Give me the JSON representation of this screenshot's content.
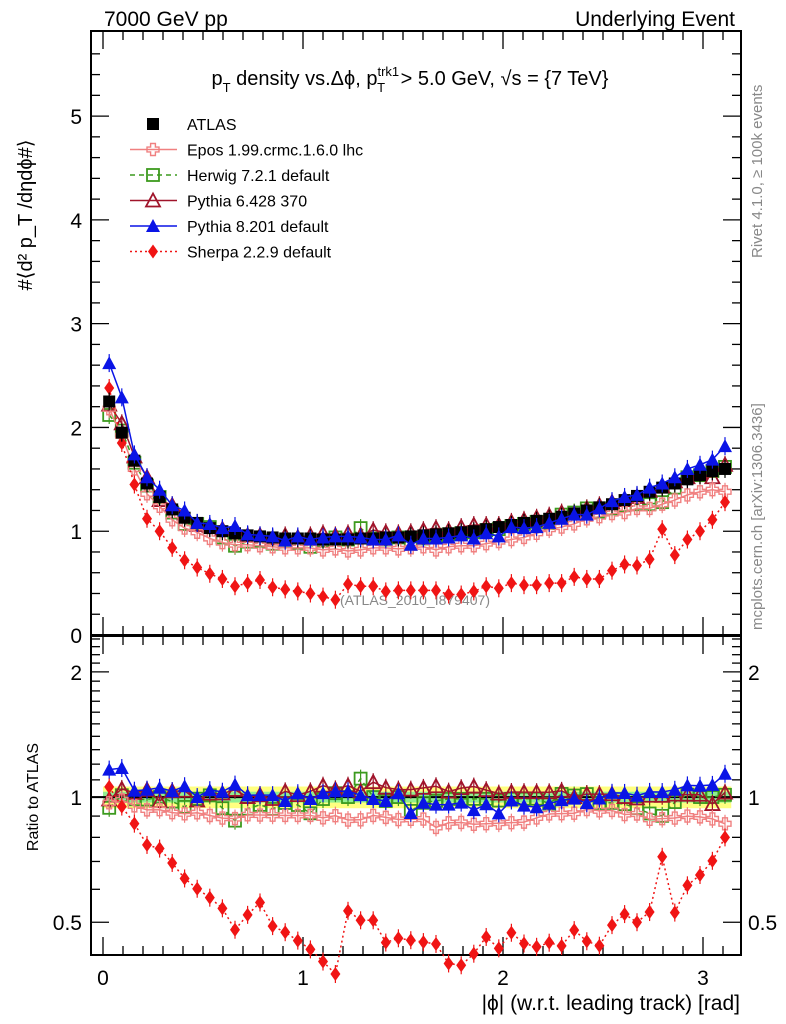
{
  "header": {
    "left": "7000 GeV pp",
    "right": "Underlying Event"
  },
  "side_text": {
    "rivet": "Rivet 4.1.0, ≥ 100k events",
    "mcplots": "mcplots.cern.ch [arXiv:1306.3436]"
  },
  "chart_data": [
    {
      "type": "scatter",
      "panel": "main",
      "title_parts": {
        "p": "p",
        "t_sub": "T",
        "mid": " density vs.Δϕ, p",
        "trk_sup": "trk1",
        "t_sub2": "T",
        "tail": " > 5.0 GeV, √s = {7 TeV}"
      },
      "title": "p_T density vs.Δϕ, p_T^trk1 > 5.0 GeV, √s = {7 TeV}",
      "ylabel": "#⟨d² p_T /dηdϕ#⟩",
      "ylim": [
        0,
        5.82
      ],
      "xlim": [
        -0.06,
        3.2
      ],
      "yticks": [
        "0",
        "1",
        "2",
        "3",
        "4",
        "5"
      ],
      "annotation": "(ATLAS_2010_I879407)",
      "legend_position": "top-left",
      "legend": [
        {
          "name": "ATLAS",
          "color": "#000000",
          "marker": "square-filled",
          "line": "none"
        },
        {
          "name": "Epos 1.99.crmc.1.6.0 lhc",
          "color": "#f08080",
          "marker": "cross-open",
          "line": "solid"
        },
        {
          "name": "Herwig 7.2.1 default",
          "color": "#3c9a1e",
          "marker": "square-open",
          "line": "dashed"
        },
        {
          "name": "Pythia 6.428 370",
          "color": "#a0142a",
          "marker": "triangle-open",
          "line": "solid"
        },
        {
          "name": "Pythia 8.201 default",
          "color": "#0a14e6",
          "marker": "triangle-filled",
          "line": "solid"
        },
        {
          "name": "Sherpa 2.2.9 default",
          "color": "#f01414",
          "marker": "diamond-filled",
          "line": "dotted"
        }
      ],
      "x": [
        0.031,
        0.094,
        0.157,
        0.22,
        0.283,
        0.346,
        0.408,
        0.471,
        0.534,
        0.597,
        0.66,
        0.723,
        0.785,
        0.848,
        0.911,
        0.974,
        1.037,
        1.1,
        1.162,
        1.225,
        1.288,
        1.351,
        1.414,
        1.477,
        1.539,
        1.602,
        1.665,
        1.728,
        1.791,
        1.854,
        1.916,
        1.979,
        2.042,
        2.105,
        2.168,
        2.231,
        2.293,
        2.356,
        2.419,
        2.482,
        2.545,
        2.608,
        2.67,
        2.733,
        2.796,
        2.859,
        2.922,
        2.985,
        3.047,
        3.11
      ],
      "series": [
        {
          "name": "ATLAS",
          "values": [
            2.25,
            1.95,
            1.68,
            1.46,
            1.33,
            1.21,
            1.13,
            1.08,
            1.03,
            1.0,
            0.98,
            0.96,
            0.95,
            0.94,
            0.93,
            0.93,
            0.93,
            0.92,
            0.92,
            0.92,
            0.93,
            0.93,
            0.94,
            0.94,
            0.95,
            0.96,
            0.97,
            0.98,
            0.99,
            1.0,
            1.02,
            1.04,
            1.06,
            1.08,
            1.1,
            1.12,
            1.14,
            1.17,
            1.2,
            1.23,
            1.26,
            1.3,
            1.34,
            1.38,
            1.42,
            1.46,
            1.5,
            1.54,
            1.58,
            1.6
          ]
        },
        {
          "name": "Epos 1.99.crmc.1.6.0 lhc",
          "values": [
            2.18,
            1.92,
            1.6,
            1.36,
            1.24,
            1.11,
            1.03,
            0.99,
            0.93,
            0.89,
            0.87,
            0.87,
            0.86,
            0.85,
            0.84,
            0.84,
            0.84,
            0.82,
            0.83,
            0.81,
            0.82,
            0.84,
            0.84,
            0.83,
            0.84,
            0.85,
            0.82,
            0.85,
            0.86,
            0.86,
            0.88,
            0.9,
            0.92,
            0.94,
            0.98,
            1.02,
            1.04,
            1.07,
            1.12,
            1.14,
            1.17,
            1.18,
            1.22,
            1.22,
            1.26,
            1.3,
            1.35,
            1.38,
            1.4,
            1.38
          ]
        },
        {
          "name": "Herwig 7.2.1 default",
          "values": [
            2.12,
            1.97,
            1.66,
            1.44,
            1.33,
            1.18,
            1.07,
            1.07,
            1.04,
            0.94,
            0.86,
            0.9,
            0.91,
            0.88,
            0.9,
            0.89,
            0.85,
            0.91,
            0.94,
            0.92,
            1.03,
            0.93,
            0.92,
            0.94,
            0.88,
            0.93,
            0.95,
            0.97,
            0.98,
            0.99,
            1.01,
            1.02,
            1.05,
            1.07,
            1.09,
            1.08,
            1.16,
            1.18,
            1.22,
            1.19,
            1.22,
            1.25,
            1.26,
            1.26,
            1.28,
            1.42,
            1.52,
            1.54,
            1.58,
            1.62
          ]
        },
        {
          "name": "Pythia 6.428 370",
          "values": [
            2.22,
            2.04,
            1.72,
            1.52,
            1.3,
            1.25,
            1.17,
            1.06,
            1.05,
            1.02,
            1.02,
            0.96,
            0.96,
            0.93,
            0.96,
            0.94,
            0.96,
            0.98,
            0.96,
            0.98,
            0.96,
            1.01,
            0.99,
            0.98,
            0.99,
            1.01,
            1.03,
            1.01,
            1.04,
            1.06,
            1.06,
            1.06,
            1.09,
            1.11,
            1.13,
            1.15,
            1.18,
            1.17,
            1.22,
            1.25,
            1.28,
            1.3,
            1.33,
            1.39,
            1.43,
            1.48,
            1.52,
            1.56,
            1.52,
            1.64
          ]
        },
        {
          "name": "Pythia 8.201 default",
          "values": [
            2.62,
            2.29,
            1.74,
            1.52,
            1.4,
            1.25,
            1.2,
            1.08,
            1.07,
            1.03,
            1.05,
            0.97,
            0.96,
            0.95,
            0.91,
            0.95,
            0.92,
            0.94,
            0.95,
            0.95,
            0.94,
            0.92,
            0.92,
            0.96,
            0.87,
            0.93,
            0.93,
            0.94,
            0.96,
            0.93,
            0.98,
            0.95,
            1.04,
            1.03,
            1.04,
            1.08,
            1.12,
            1.16,
            1.16,
            1.22,
            1.29,
            1.33,
            1.35,
            1.42,
            1.46,
            1.52,
            1.6,
            1.64,
            1.69,
            1.82
          ]
        },
        {
          "name": "Sherpa 2.2.9 default",
          "values": [
            2.38,
            1.85,
            1.45,
            1.12,
            1.0,
            0.84,
            0.72,
            0.65,
            0.59,
            0.54,
            0.47,
            0.5,
            0.53,
            0.46,
            0.44,
            0.42,
            0.4,
            0.37,
            0.34,
            0.49,
            0.47,
            0.47,
            0.42,
            0.43,
            0.43,
            0.43,
            0.43,
            0.39,
            0.39,
            0.42,
            0.47,
            0.45,
            0.5,
            0.48,
            0.48,
            0.5,
            0.5,
            0.56,
            0.54,
            0.54,
            0.62,
            0.68,
            0.67,
            0.73,
            1.02,
            0.77,
            0.92,
            1.0,
            1.11,
            1.28
          ]
        }
      ]
    },
    {
      "type": "scatter",
      "panel": "ratio",
      "ylabel": "Ratio to ATLAS",
      "xlabel": "|ϕ| (w.r.t. leading track) [rad]",
      "yscale": "log",
      "ylim": [
        0.417,
        2.44
      ],
      "yticks": [
        "0.5",
        "1",
        "2"
      ],
      "xticks": [
        "0",
        "1",
        "2",
        "3"
      ],
      "bands": [
        {
          "name": "stat+syst",
          "color": "#ffff80",
          "half_width": 0.06
        },
        {
          "name": "stat",
          "color": "#90ee90",
          "half_width": 0.03
        }
      ]
    }
  ]
}
